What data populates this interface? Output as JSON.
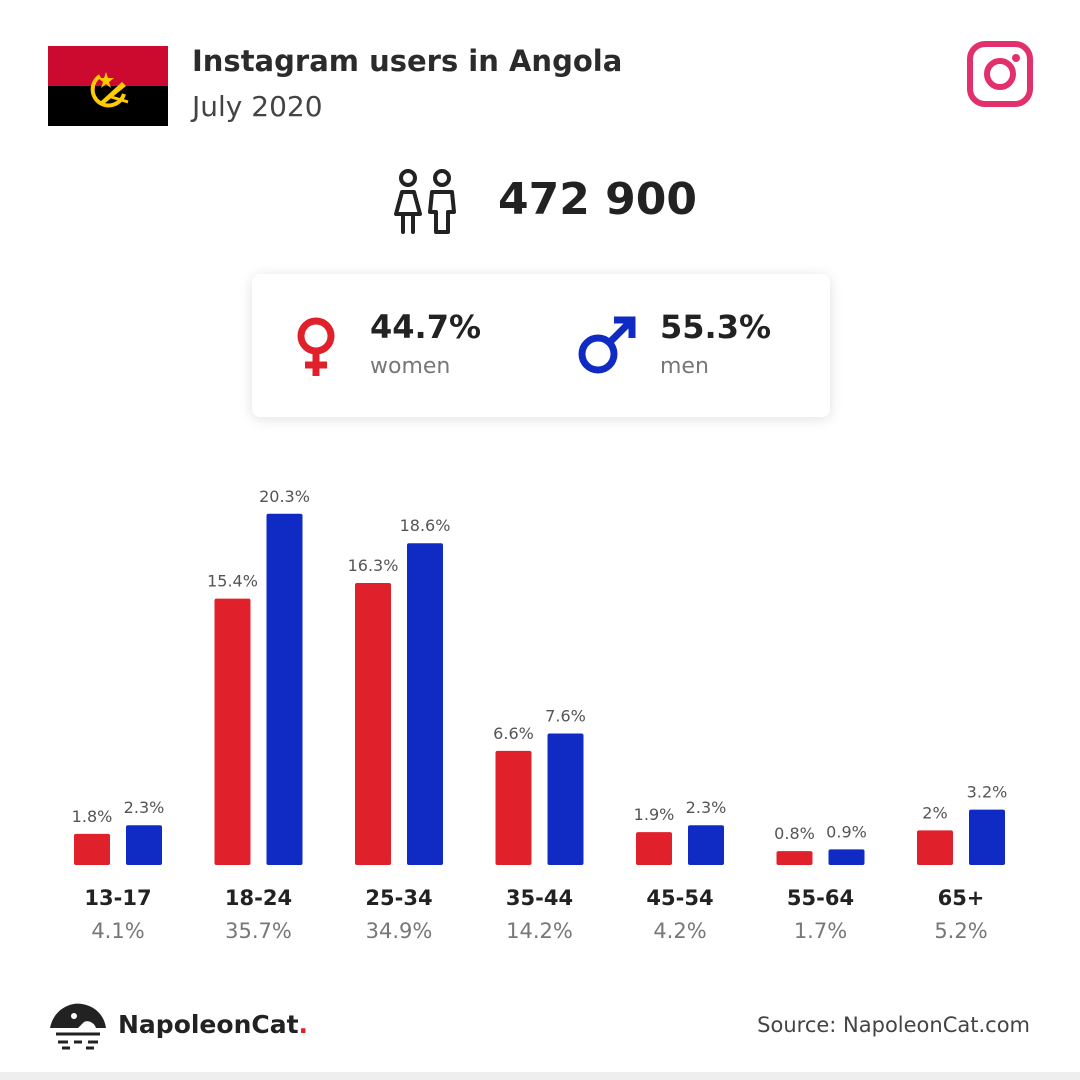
{
  "header": {
    "title": "Instagram users in Angola",
    "subtitle": "July 2020"
  },
  "flag": {
    "colors": [
      "#cc092f",
      "#000000",
      "#ffcb00"
    ],
    "icon": "angola-flag"
  },
  "total": {
    "value": "472 900",
    "icon": "people-icon"
  },
  "gender": {
    "women": {
      "percent": "44.7%",
      "label": "women",
      "color": "#e0202a",
      "icon": "female-symbol-icon"
    },
    "men": {
      "percent": "55.3%",
      "label": "men",
      "color": "#102bc4",
      "icon": "male-symbol-icon"
    }
  },
  "chart_data": {
    "type": "bar",
    "categories": [
      "13-17",
      "18-24",
      "25-34",
      "35-44",
      "45-54",
      "55-64",
      "65+"
    ],
    "category_totals": [
      "4.1%",
      "35.7%",
      "34.9%",
      "14.2%",
      "4.2%",
      "1.7%",
      "5.2%"
    ],
    "series": [
      {
        "name": "women",
        "color": "#e0202a",
        "values": [
          1.8,
          15.4,
          16.3,
          6.6,
          1.9,
          0.8,
          2
        ],
        "labels": [
          "1.8%",
          "15.4%",
          "16.3%",
          "6.6%",
          "1.9%",
          "0.8%",
          "2%"
        ]
      },
      {
        "name": "men",
        "color": "#102bc4",
        "values": [
          2.3,
          20.3,
          18.6,
          7.6,
          2.3,
          0.9,
          3.2
        ],
        "labels": [
          "2.3%",
          "20.3%",
          "18.6%",
          "7.6%",
          "2.3%",
          "0.9%",
          "3.2%"
        ]
      }
    ],
    "title": "",
    "xlabel": "",
    "ylabel": "",
    "grid": false
  },
  "footer": {
    "brand": "NapoleonCat",
    "brand_dot": ".",
    "source": "Source: NapoleonCat.com"
  }
}
